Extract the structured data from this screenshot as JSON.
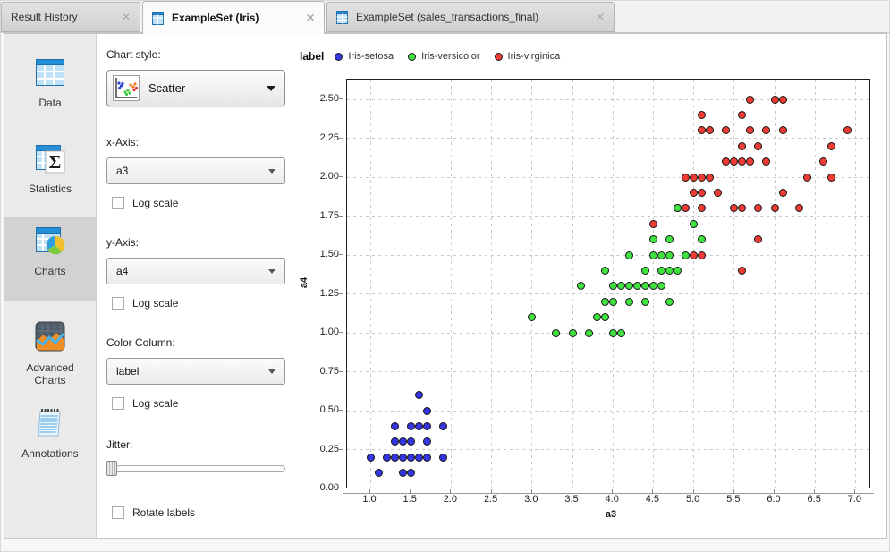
{
  "tabs": [
    {
      "label": "Result History",
      "active": false,
      "has_icon": false,
      "close_icon": "✕"
    },
    {
      "label": "ExampleSet (Iris)",
      "active": true,
      "has_icon": true,
      "icon": "table-icon",
      "close_icon": "✕"
    },
    {
      "label": "ExampleSet (sales_transactions_final)",
      "active": false,
      "has_icon": true,
      "icon": "table-icon",
      "close_icon": "✕"
    }
  ],
  "sidebar": {
    "items": [
      {
        "label": "Data",
        "icon": "data-table-icon",
        "selected": false
      },
      {
        "label": "Statistics",
        "icon": "statistics-sigma-icon",
        "selected": false
      },
      {
        "label": "Charts",
        "icon": "charts-pie-icon",
        "selected": true
      },
      {
        "label": "Advanced Charts",
        "icon": "advanced-charts-icon",
        "selected": false
      },
      {
        "label": "Annotations",
        "icon": "annotations-notepad-icon",
        "selected": false
      }
    ]
  },
  "controls": {
    "chart_style": {
      "label": "Chart style:",
      "value": "Scatter",
      "icon": "scatter-thumbnail-icon"
    },
    "x_axis": {
      "label": "x-Axis:",
      "value": "a3",
      "log_label": "Log scale",
      "log_checked": false
    },
    "y_axis": {
      "label": "y-Axis:",
      "value": "a4",
      "log_label": "Log scale",
      "log_checked": false
    },
    "color_column": {
      "label": "Color Column:",
      "value": "label",
      "log_label": "Log scale",
      "log_checked": false
    },
    "jitter_label": "Jitter:",
    "jitter_value": 0,
    "rotate_label": "Rotate labels",
    "rotate_checked": false
  },
  "chart_data": {
    "type": "scatter",
    "legend_title": "label",
    "legend_position": "top-left",
    "grid": "dashed",
    "xlabel": "a3",
    "ylabel": "a4",
    "xlim": [
      0.71,
      7.17
    ],
    "ylim": [
      0.0,
      2.63
    ],
    "x_ticks": [
      1.0,
      1.5,
      2.0,
      2.5,
      3.0,
      3.5,
      4.0,
      4.5,
      5.0,
      5.5,
      6.0,
      6.5,
      7.0
    ],
    "y_ticks": [
      0.0,
      0.25,
      0.5,
      0.75,
      1.0,
      1.25,
      1.5,
      1.75,
      2.0,
      2.25,
      2.5
    ],
    "x_tick_decimals": 1,
    "y_tick_decimals": 2,
    "draw_order": [
      0,
      2,
      1
    ],
    "series": [
      {
        "name": "Iris-setosa",
        "color": "#3535E3",
        "points": [
          [
            1.1,
            0.1
          ],
          [
            1.4,
            0.1
          ],
          [
            1.5,
            0.1
          ],
          [
            1.0,
            0.2
          ],
          [
            1.2,
            0.2
          ],
          [
            1.3,
            0.2
          ],
          [
            1.4,
            0.2
          ],
          [
            1.5,
            0.2
          ],
          [
            1.6,
            0.2
          ],
          [
            1.7,
            0.2
          ],
          [
            1.9,
            0.2
          ],
          [
            1.3,
            0.3
          ],
          [
            1.4,
            0.3
          ],
          [
            1.5,
            0.3
          ],
          [
            1.7,
            0.3
          ],
          [
            1.3,
            0.4
          ],
          [
            1.5,
            0.4
          ],
          [
            1.6,
            0.4
          ],
          [
            1.7,
            0.4
          ],
          [
            1.9,
            0.4
          ],
          [
            1.7,
            0.5
          ],
          [
            1.6,
            0.6
          ]
        ]
      },
      {
        "name": "Iris-versicolor",
        "color": "#3FE23F",
        "points": [
          [
            3.3,
            1.0
          ],
          [
            3.5,
            1.0
          ],
          [
            3.7,
            1.0
          ],
          [
            4.0,
            1.0
          ],
          [
            4.1,
            1.0
          ],
          [
            3.0,
            1.1
          ],
          [
            3.8,
            1.1
          ],
          [
            3.9,
            1.1
          ],
          [
            3.9,
            1.2
          ],
          [
            4.0,
            1.2
          ],
          [
            4.2,
            1.2
          ],
          [
            4.4,
            1.2
          ],
          [
            4.7,
            1.2
          ],
          [
            3.6,
            1.3
          ],
          [
            4.0,
            1.3
          ],
          [
            4.1,
            1.3
          ],
          [
            4.2,
            1.3
          ],
          [
            4.3,
            1.3
          ],
          [
            4.4,
            1.3
          ],
          [
            4.5,
            1.3
          ],
          [
            4.6,
            1.3
          ],
          [
            3.9,
            1.4
          ],
          [
            4.4,
            1.4
          ],
          [
            4.6,
            1.4
          ],
          [
            4.7,
            1.4
          ],
          [
            4.8,
            1.4
          ],
          [
            4.2,
            1.5
          ],
          [
            4.5,
            1.5
          ],
          [
            4.6,
            1.5
          ],
          [
            4.7,
            1.5
          ],
          [
            4.9,
            1.5
          ],
          [
            4.5,
            1.6
          ],
          [
            4.7,
            1.6
          ],
          [
            5.1,
            1.6
          ],
          [
            5.0,
            1.7
          ],
          [
            4.8,
            1.8
          ]
        ]
      },
      {
        "name": "Iris-virginica",
        "color": "#EE3B33",
        "points": [
          [
            5.6,
            1.4
          ],
          [
            5.0,
            1.5
          ],
          [
            5.1,
            1.5
          ],
          [
            5.8,
            1.6
          ],
          [
            4.5,
            1.7
          ],
          [
            4.8,
            1.8
          ],
          [
            4.9,
            1.8
          ],
          [
            5.1,
            1.8
          ],
          [
            5.5,
            1.8
          ],
          [
            5.6,
            1.8
          ],
          [
            5.8,
            1.8
          ],
          [
            6.0,
            1.8
          ],
          [
            6.3,
            1.8
          ],
          [
            5.0,
            1.9
          ],
          [
            5.1,
            1.9
          ],
          [
            5.3,
            1.9
          ],
          [
            6.1,
            1.9
          ],
          [
            4.9,
            2.0
          ],
          [
            5.0,
            2.0
          ],
          [
            5.1,
            2.0
          ],
          [
            5.2,
            2.0
          ],
          [
            6.4,
            2.0
          ],
          [
            6.7,
            2.0
          ],
          [
            5.4,
            2.1
          ],
          [
            5.5,
            2.1
          ],
          [
            5.6,
            2.1
          ],
          [
            5.7,
            2.1
          ],
          [
            5.9,
            2.1
          ],
          [
            6.6,
            2.1
          ],
          [
            5.6,
            2.2
          ],
          [
            5.8,
            2.2
          ],
          [
            6.7,
            2.2
          ],
          [
            5.1,
            2.3
          ],
          [
            5.2,
            2.3
          ],
          [
            5.4,
            2.3
          ],
          [
            5.7,
            2.3
          ],
          [
            5.9,
            2.3
          ],
          [
            6.1,
            2.3
          ],
          [
            6.9,
            2.3
          ],
          [
            5.1,
            2.4
          ],
          [
            5.6,
            2.4
          ],
          [
            5.7,
            2.5
          ],
          [
            6.0,
            2.5
          ],
          [
            6.1,
            2.5
          ]
        ]
      }
    ]
  }
}
